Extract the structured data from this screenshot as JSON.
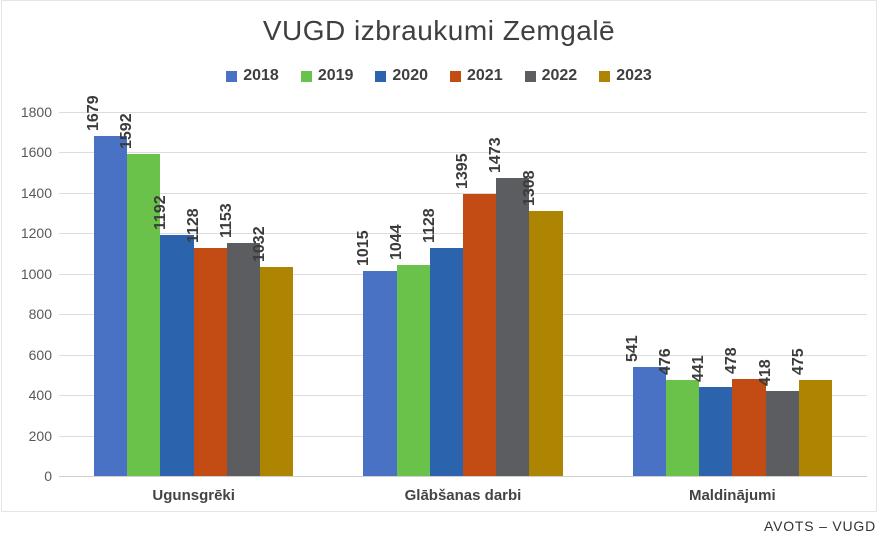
{
  "title": "VUGD izbraukumi Zemgalē",
  "source_note": "AVOTS – VUGD",
  "chart_data": {
    "type": "bar",
    "title": "VUGD izbraukumi Zemgalē",
    "categories": [
      "Ugunsgrēki",
      "Glābšanas darbi",
      "Maldinājumi"
    ],
    "series": [
      {
        "name": "2018",
        "color": "#4a72c4",
        "values": [
          1679,
          1015,
          541
        ]
      },
      {
        "name": "2019",
        "color": "#6bc24a",
        "values": [
          1592,
          1044,
          476
        ]
      },
      {
        "name": "2020",
        "color": "#2b63ad",
        "values": [
          1192,
          1128,
          441
        ]
      },
      {
        "name": "2021",
        "color": "#c24c13",
        "values": [
          1128,
          1395,
          478
        ]
      },
      {
        "name": "2022",
        "color": "#5b5d60",
        "values": [
          1153,
          1473,
          418
        ]
      },
      {
        "name": "2023",
        "color": "#ad8502",
        "values": [
          1032,
          1308,
          475
        ]
      }
    ],
    "xlabel": "",
    "ylabel": "",
    "ylim": [
      0,
      1800
    ],
    "yticks": [
      0,
      200,
      400,
      600,
      800,
      1000,
      1200,
      1400,
      1600,
      1800
    ],
    "grid": "horizontal",
    "legend_position": "top",
    "data_labels": "rotated-90-above-bars"
  }
}
